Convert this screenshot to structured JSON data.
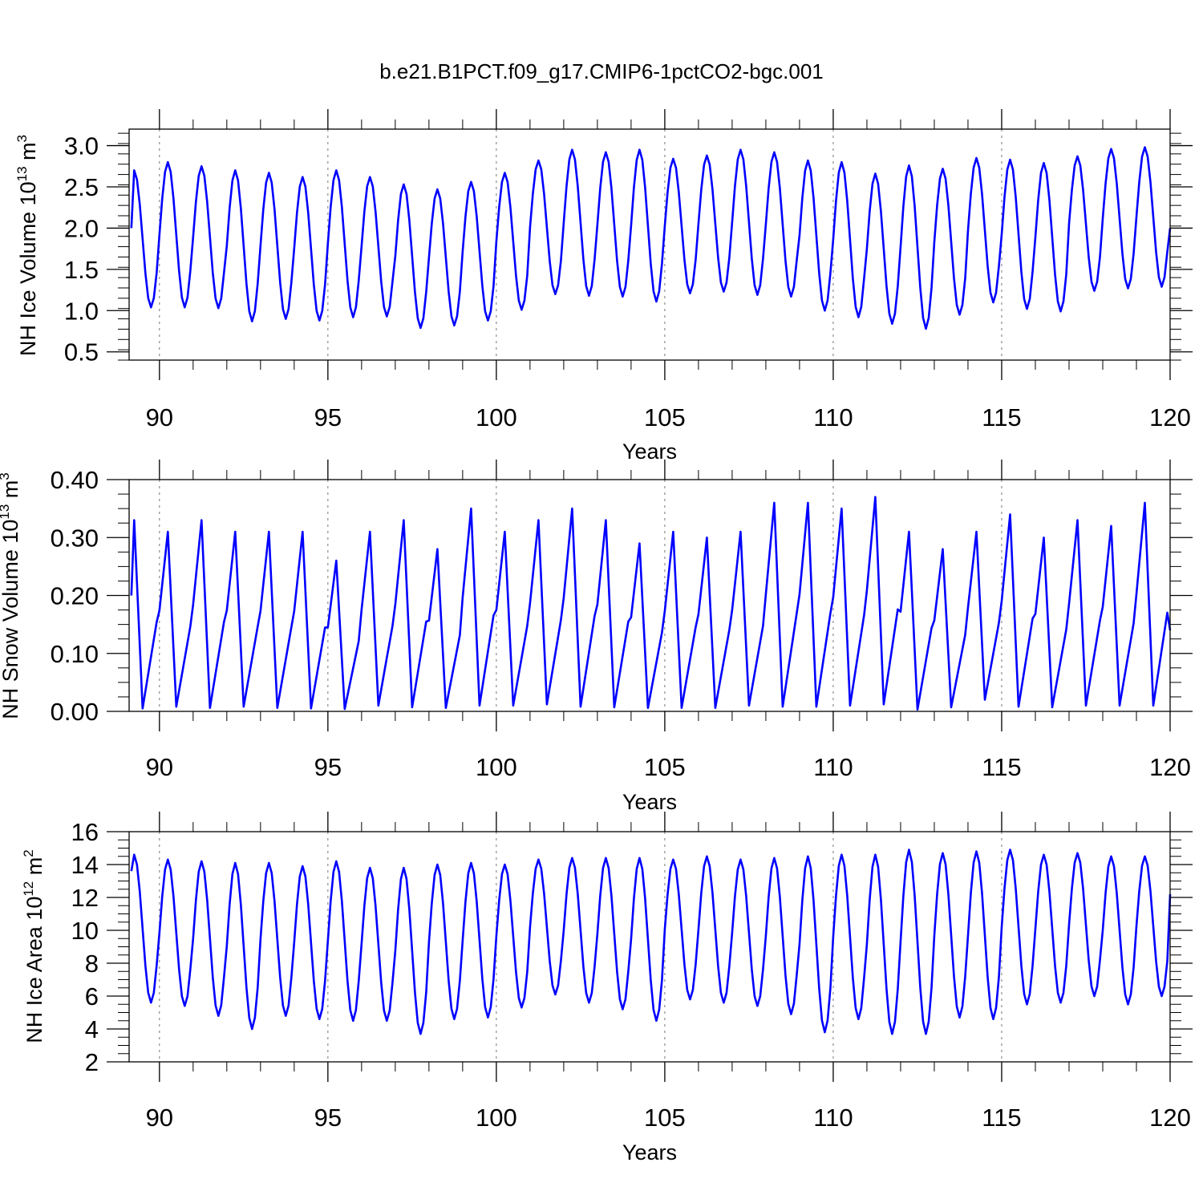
{
  "figure": {
    "title": "b.e21.B1PCT.f09_g17.CMIP6-1pctCO2-bgc.001"
  },
  "chart_data": [
    {
      "type": "line",
      "xlabel": "Years",
      "ylabel": "NH Ice Volume 10",
      "ylabel_exp": "13",
      "ylabel_unit": " m",
      "ylabel_unit_exp": "3",
      "xlim": [
        89.1,
        120
      ],
      "ylim": [
        0.4,
        3.2
      ],
      "xticks": [
        90,
        95,
        100,
        105,
        110,
        115,
        120
      ],
      "xtick_labels": [
        "90",
        "95",
        "100",
        "105",
        "110",
        "115",
        "120"
      ],
      "yticks": [
        0.5,
        1.0,
        1.5,
        2.0,
        2.5,
        3.0
      ],
      "ytick_labels": [
        "0.5",
        "1.0",
        "1.5",
        "2.0",
        "2.5",
        "3.0"
      ],
      "grid": "vertical dashed lines at major x ticks",
      "line_color": "#0000ff",
      "start_value": 2.0,
      "end_value": 2.0,
      "annual_max": [
        2.7,
        2.8,
        2.75,
        2.7,
        2.67,
        2.62,
        2.7,
        2.62,
        2.53,
        2.47,
        2.56,
        2.67,
        2.82,
        2.95,
        2.92,
        2.95,
        2.84,
        2.88,
        2.95,
        2.92,
        2.82,
        2.8,
        2.66,
        2.76,
        2.72,
        2.85,
        2.83,
        2.79,
        2.87,
        2.96,
        2.98
      ],
      "annual_min": [
        1.04,
        1.04,
        1.03,
        0.87,
        0.9,
        0.88,
        0.92,
        0.93,
        0.79,
        0.82,
        0.88,
        1.01,
        1.2,
        1.18,
        1.17,
        1.11,
        1.21,
        1.23,
        1.19,
        1.17,
        1.0,
        0.92,
        0.84,
        0.78,
        0.95,
        1.1,
        1.02,
        0.99,
        1.24,
        1.27,
        1.29
      ]
    },
    {
      "type": "line",
      "xlabel": "Years",
      "ylabel": "NH Snow Volume 10",
      "ylabel_exp": "13",
      "ylabel_unit": " m",
      "ylabel_unit_exp": "3",
      "xlim": [
        89.1,
        120
      ],
      "ylim": [
        0.0,
        0.4
      ],
      "xticks": [
        90,
        95,
        100,
        105,
        110,
        115,
        120
      ],
      "xtick_labels": [
        "90",
        "95",
        "100",
        "105",
        "110",
        "115",
        "120"
      ],
      "yticks": [
        0.0,
        0.1,
        0.2,
        0.3,
        0.4
      ],
      "ytick_labels": [
        "0.00",
        "0.10",
        "0.20",
        "0.30",
        "0.40"
      ],
      "grid": "vertical dashed lines at major x ticks",
      "line_color": "#0000ff",
      "start_value": 0.2,
      "end_value": 0.14,
      "annual_max": [
        0.33,
        0.31,
        0.33,
        0.31,
        0.31,
        0.31,
        0.26,
        0.31,
        0.33,
        0.28,
        0.35,
        0.31,
        0.33,
        0.35,
        0.33,
        0.29,
        0.31,
        0.3,
        0.31,
        0.36,
        0.36,
        0.35,
        0.37,
        0.31,
        0.28,
        0.31,
        0.34,
        0.3,
        0.33,
        0.32,
        0.36
      ],
      "annual_min": [
        0.005,
        0.008,
        0.006,
        0.008,
        0.006,
        0.005,
        0.004,
        0.01,
        0.007,
        0.006,
        0.01,
        0.01,
        0.012,
        0.008,
        0.007,
        0.006,
        0.006,
        0.006,
        0.01,
        0.008,
        0.008,
        0.01,
        0.012,
        0.003,
        0.007,
        0.02,
        0.008,
        0.007,
        0.01,
        0.01,
        0.01
      ]
    },
    {
      "type": "line",
      "xlabel": "Years",
      "ylabel": "NH Ice Area 10",
      "ylabel_exp": "12",
      "ylabel_unit": " m",
      "ylabel_unit_exp": "2",
      "xlim": [
        89.1,
        120
      ],
      "ylim": [
        2,
        16
      ],
      "xticks": [
        90,
        95,
        100,
        105,
        110,
        115,
        120
      ],
      "xtick_labels": [
        "90",
        "95",
        "100",
        "105",
        "110",
        "115",
        "120"
      ],
      "yticks": [
        2,
        4,
        6,
        8,
        10,
        12,
        14,
        16
      ],
      "ytick_labels": [
        "2",
        "4",
        "6",
        "8",
        "10",
        "12",
        "14",
        "16"
      ],
      "grid": "vertical dashed lines at major x ticks",
      "line_color": "#0000ff",
      "start_value": 13.6,
      "end_value": 12.2,
      "annual_max": [
        14.6,
        14.3,
        14.2,
        14.1,
        14.1,
        13.9,
        14.2,
        13.8,
        13.8,
        14.0,
        14.1,
        14.0,
        14.3,
        14.4,
        14.4,
        14.4,
        14.3,
        14.5,
        14.3,
        14.4,
        14.5,
        14.6,
        14.6,
        14.9,
        14.7,
        14.8,
        14.9,
        14.6,
        14.7,
        14.5,
        14.5
      ],
      "annual_min": [
        5.6,
        5.4,
        4.8,
        4.0,
        4.8,
        4.6,
        4.5,
        4.5,
        3.7,
        4.6,
        4.7,
        5.3,
        6.1,
        5.6,
        5.2,
        4.5,
        5.8,
        5.6,
        5.4,
        4.9,
        3.8,
        4.6,
        3.7,
        3.7,
        4.7,
        4.6,
        5.5,
        5.6,
        6.0,
        5.5,
        6.0
      ]
    }
  ]
}
